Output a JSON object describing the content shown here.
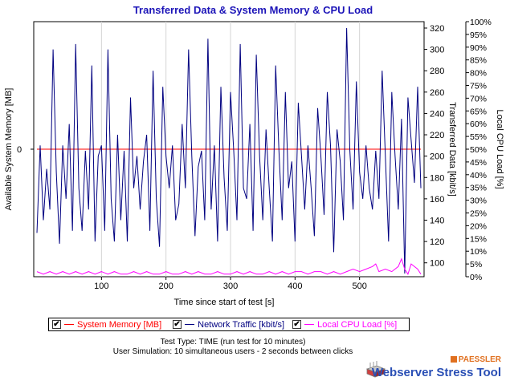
{
  "title": "Transferred Data & System Memory & CPU Load",
  "chart_data": {
    "type": "line",
    "title": "Transferred Data & System Memory & CPU Load",
    "xlabel": "Time since start of test [s]",
    "ylabel_left": "Available System Memory [MB]",
    "ylabel_right1": "Transferred Data [kbit/s]",
    "ylabel_right2": "Local CPU Load [%]",
    "x_ticks": [
      "100",
      "200",
      "300",
      "400",
      "500"
    ],
    "xlim": [
      -5,
      600
    ],
    "y_left_ticks": [
      "0"
    ],
    "y_right1_ticks": [
      "100",
      "120",
      "140",
      "160",
      "180",
      "200",
      "220",
      "240",
      "260",
      "280",
      "300",
      "320"
    ],
    "y_right1_lim": [
      87,
      326
    ],
    "y_right2_ticks": [
      "0%",
      "5%",
      "10%",
      "15%",
      "20%",
      "25%",
      "30%",
      "35%",
      "40%",
      "45%",
      "50%",
      "55%",
      "60%",
      "65%",
      "70%",
      "75%",
      "80%",
      "85%",
      "90%",
      "95%",
      "100%"
    ],
    "y_right2_lim": [
      0,
      100
    ],
    "grid": true,
    "series": [
      {
        "name": "System Memory [MB]",
        "color": "#ff0000",
        "axis": "left",
        "x": [
          0,
          595
        ],
        "y": [
          0,
          0
        ]
      },
      {
        "name": "Network Traffic [kbit/s]",
        "color": "#000080",
        "axis": "right1",
        "x": [
          0,
          5,
          10,
          15,
          20,
          25,
          30,
          35,
          40,
          45,
          50,
          55,
          60,
          65,
          70,
          75,
          80,
          85,
          90,
          95,
          100,
          105,
          110,
          115,
          120,
          125,
          130,
          135,
          140,
          145,
          150,
          155,
          160,
          165,
          170,
          175,
          180,
          185,
          190,
          195,
          200,
          205,
          210,
          215,
          220,
          225,
          230,
          235,
          240,
          245,
          250,
          255,
          260,
          265,
          270,
          275,
          280,
          285,
          290,
          295,
          300,
          305,
          310,
          315,
          320,
          325,
          330,
          335,
          340,
          345,
          350,
          355,
          360,
          365,
          370,
          375,
          380,
          385,
          390,
          395,
          400,
          405,
          410,
          415,
          420,
          425,
          430,
          435,
          440,
          445,
          450,
          455,
          460,
          465,
          470,
          475,
          480,
          485,
          490,
          495,
          500,
          505,
          510,
          515,
          520,
          525,
          530,
          535,
          540,
          545,
          550,
          555,
          560,
          565,
          570,
          575,
          580,
          585,
          590,
          595
        ],
        "y": [
          128,
          210,
          140,
          188,
          150,
          300,
          185,
          118,
          210,
          160,
          230,
          130,
          305,
          170,
          130,
          205,
          150,
          285,
          120,
          200,
          210,
          130,
          300,
          160,
          120,
          220,
          140,
          205,
          120,
          255,
          170,
          200,
          150,
          195,
          220,
          130,
          280,
          160,
          115,
          265,
          200,
          170,
          210,
          140,
          155,
          230,
          170,
          300,
          200,
          125,
          190,
          205,
          140,
          310,
          150,
          210,
          120,
          265,
          180,
          130,
          260,
          205,
          140,
          305,
          170,
          160,
          230,
          130,
          295,
          200,
          140,
          225,
          170,
          120,
          285,
          205,
          140,
          260,
          170,
          195,
          120,
          250,
          200,
          150,
          210,
          170,
          125,
          245,
          200,
          145,
          260,
          210,
          110,
          225,
          195,
          140,
          320,
          205,
          150,
          270,
          185,
          160,
          210,
          170,
          150,
          205,
          160,
          280,
          200,
          120,
          260,
          200,
          150,
          235,
          90,
          255,
          215,
          175,
          265,
          170
        ]
      },
      {
        "name": "Local CPU Load [%]",
        "color": "#ff00ff",
        "axis": "right2",
        "x": [
          0,
          10,
          20,
          30,
          40,
          50,
          60,
          70,
          80,
          90,
          100,
          110,
          120,
          130,
          140,
          150,
          160,
          170,
          180,
          190,
          200,
          210,
          220,
          230,
          240,
          250,
          260,
          270,
          280,
          290,
          300,
          310,
          320,
          330,
          340,
          350,
          360,
          370,
          380,
          390,
          400,
          410,
          420,
          430,
          440,
          450,
          460,
          470,
          480,
          490,
          500,
          510,
          520,
          525,
          530,
          540,
          550,
          560,
          565,
          570,
          575,
          580,
          590,
          595
        ],
        "y": [
          2,
          1,
          2,
          1,
          2,
          1,
          2,
          1,
          2,
          1,
          2,
          1,
          2,
          1,
          1,
          2,
          1,
          2,
          1,
          1,
          2,
          1,
          1,
          2,
          1,
          2,
          1,
          1,
          2,
          1,
          1,
          2,
          1,
          2,
          1,
          1,
          2,
          1,
          2,
          1,
          2,
          2,
          1,
          2,
          2,
          1,
          2,
          1,
          2,
          3,
          2,
          3,
          4,
          5,
          2,
          3,
          2,
          4,
          7,
          3,
          1,
          5,
          3,
          1
        ]
      }
    ]
  },
  "legend": [
    {
      "label": "System Memory [MB]",
      "color": "#ff0000",
      "checked": "✔"
    },
    {
      "label": "Network Traffic [kbit/s]",
      "color": "#000080",
      "checked": "✔"
    },
    {
      "label": "Local CPU Load [%]",
      "color": "#ff00ff",
      "checked": "✔"
    }
  ],
  "info": {
    "test_type": "Test Type: TIME (run test for 10 minutes)",
    "user_sim": "User Simulation: 10 simultaneous users - 2 seconds between clicks"
  },
  "brand": {
    "company": "PAESSLER",
    "product": "Webserver Stress Tool",
    "logo_icon": "stress-tool-logo-icon"
  }
}
